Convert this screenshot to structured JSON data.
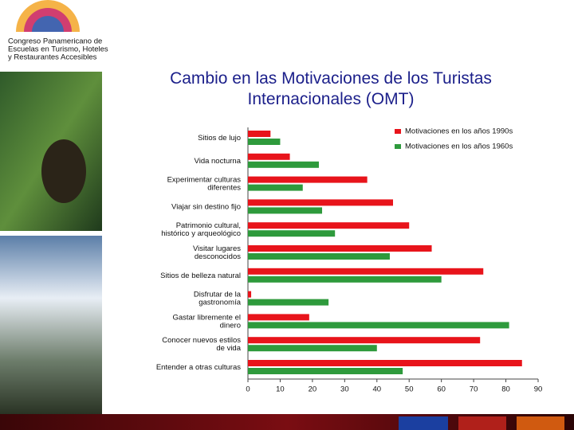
{
  "logo": {
    "lines": [
      "Congreso Panamericano de",
      "Escuelas en Turismo, Hoteles",
      "y Restaurantes Accesibles"
    ]
  },
  "chart_data": {
    "type": "barh",
    "title": "Cambio en las Motivaciones de los Turistas Internacionales (OMT)",
    "categories": [
      "Sitios de lujo",
      "Vida nocturna",
      "Experimentar culturas\ndiferentes",
      "Viajar sin destino fijo",
      "Patrimonio cultural,\nhistórico y arqueológico",
      "Visitar lugares\ndesconocidos",
      "Sitios de belleza natural",
      "Disfrutar de la\ngastronomía",
      "Gastar libremente el\ndinero",
      "Conocer nuevos estilos\nde vida",
      "Entender a otras culturas"
    ],
    "series": [
      {
        "name": "Motivaciones en los años 1990s",
        "color": "#e8141b",
        "values": [
          7,
          13,
          37,
          45,
          50,
          57,
          73,
          1,
          19,
          72,
          85
        ]
      },
      {
        "name": "Motivaciones en los años 1960s",
        "color": "#2e9a3c",
        "values": [
          10,
          22,
          17,
          23,
          27,
          44,
          60,
          25,
          81,
          40,
          48
        ]
      }
    ],
    "xlim": [
      0,
      90
    ],
    "xticks": [
      0,
      10,
      20,
      30,
      40,
      50,
      60,
      70,
      80,
      90
    ],
    "legend": "top-right"
  }
}
